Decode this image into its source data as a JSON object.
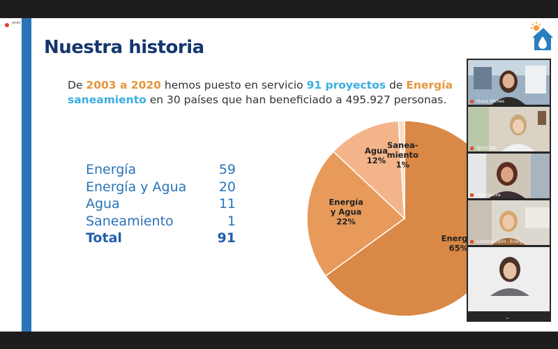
{
  "share": {
    "label": "ando"
  },
  "slide": {
    "title": "Nuestra historia",
    "intro": {
      "t1": "De ",
      "t2": "2003 a 2020",
      "t3": " hemos puesto en servicio ",
      "t4": "91 proyectos",
      "t5": " de ",
      "t6": "Energía",
      "t7": "saneamiento",
      "t8": " en 30 países que han beneficiado a 495.927 personas."
    },
    "stats": [
      {
        "label": "Energía",
        "value": "59"
      },
      {
        "label": "Energía y Agua",
        "value": "20"
      },
      {
        "label": "Agua",
        "value": "11"
      },
      {
        "label": "Saneamiento",
        "value": "1"
      }
    ],
    "total": {
      "label": "Total",
      "value": "91"
    },
    "colors": {
      "accent_orange": "#e5963c",
      "accent_blue": "#3aaee0",
      "title": "#16376e",
      "band": "#2a73b8"
    }
  },
  "chart_data": {
    "type": "pie",
    "slices": [
      {
        "label": "Energía",
        "line1": "Energía",
        "line2": "65%",
        "value": 65,
        "color": "#d98845"
      },
      {
        "label": "Energía y Agua",
        "line1": "Energía",
        "line1b": "y Agua",
        "line2": "22%",
        "value": 22,
        "color": "#e79a5a"
      },
      {
        "label": "Agua",
        "line1": "Agua",
        "line2": "12%",
        "value": 12,
        "color": "#f4b48a"
      },
      {
        "label": "Saneamiento",
        "line1": "Sanea-",
        "line1b": "miento",
        "line2": "1%",
        "value": 1,
        "color": "#f9dcc5"
      }
    ]
  },
  "participants": [
    {
      "name": "Elvira Vilches"
    },
    {
      "name": "EJE&CON"
    },
    {
      "name": "Pilar Sevilla"
    },
    {
      "name": "Carolina Carin - Energ"
    },
    {
      "name": ""
    }
  ],
  "icons": {
    "logo": "house-water-sun-logo",
    "mic": "mic-muted-icon",
    "more": "chevron-down-icon"
  }
}
